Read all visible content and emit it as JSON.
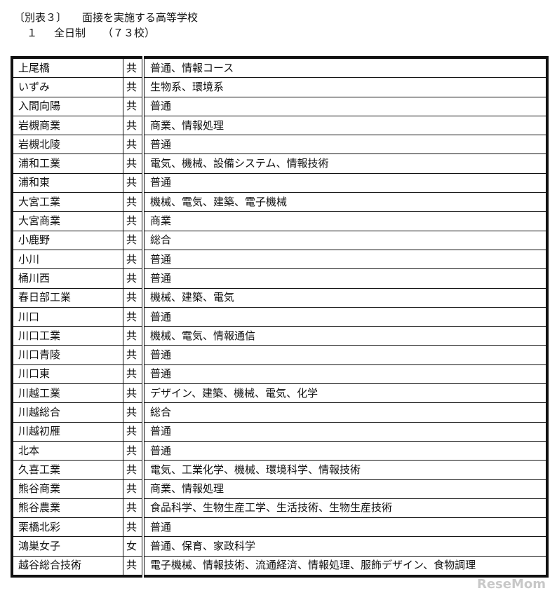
{
  "header": {
    "title_prefix": "〔別表３〕",
    "title": "面接を実施する高等学校",
    "sub_number": "１",
    "sub_label": "全日制",
    "sub_count": "（７３校）"
  },
  "rows": [
    {
      "school": "上尾橋",
      "type": "共",
      "courses": "普通、情報コース"
    },
    {
      "school": "いずみ",
      "type": "共",
      "courses": "生物系、環境系"
    },
    {
      "school": "入間向陽",
      "type": "共",
      "courses": "普通"
    },
    {
      "school": "岩槻商業",
      "type": "共",
      "courses": "商業、情報処理"
    },
    {
      "school": "岩槻北陵",
      "type": "共",
      "courses": "普通"
    },
    {
      "school": "浦和工業",
      "type": "共",
      "courses": "電気、機械、設備システム、情報技術"
    },
    {
      "school": "浦和東",
      "type": "共",
      "courses": "普通"
    },
    {
      "school": "大宮工業",
      "type": "共",
      "courses": "機械、電気、建築、電子機械"
    },
    {
      "school": "大宮商業",
      "type": "共",
      "courses": "商業"
    },
    {
      "school": "小鹿野",
      "type": "共",
      "courses": "総合"
    },
    {
      "school": "小川",
      "type": "共",
      "courses": "普通"
    },
    {
      "school": "桶川西",
      "type": "共",
      "courses": "普通"
    },
    {
      "school": "春日部工業",
      "type": "共",
      "courses": "機械、建築、電気"
    },
    {
      "school": "川口",
      "type": "共",
      "courses": "普通"
    },
    {
      "school": "川口工業",
      "type": "共",
      "courses": "機械、電気、情報通信"
    },
    {
      "school": "川口青陵",
      "type": "共",
      "courses": "普通"
    },
    {
      "school": "川口東",
      "type": "共",
      "courses": "普通"
    },
    {
      "school": "川越工業",
      "type": "共",
      "courses": "デザイン、建築、機械、電気、化学"
    },
    {
      "school": "川越総合",
      "type": "共",
      "courses": "総合"
    },
    {
      "school": "川越初雁",
      "type": "共",
      "courses": "普通"
    },
    {
      "school": "北本",
      "type": "共",
      "courses": "普通"
    },
    {
      "school": "久喜工業",
      "type": "共",
      "courses": "電気、工業化学、機械、環境科学、情報技術"
    },
    {
      "school": "熊谷商業",
      "type": "共",
      "courses": "商業、情報処理"
    },
    {
      "school": "熊谷農業",
      "type": "共",
      "courses": "食品科学、生物生産工学、生活技術、生物生産技術"
    },
    {
      "school": "栗橋北彩",
      "type": "共",
      "courses": "普通"
    },
    {
      "school": "鴻巣女子",
      "type": "女",
      "courses": "普通、保育、家政科学"
    },
    {
      "school": "越谷総合技術",
      "type": "共",
      "courses": "電子機械、情報技術、流通経済、情報処理、服飾デザイン、食物調理"
    }
  ],
  "watermark": "ReseMom"
}
